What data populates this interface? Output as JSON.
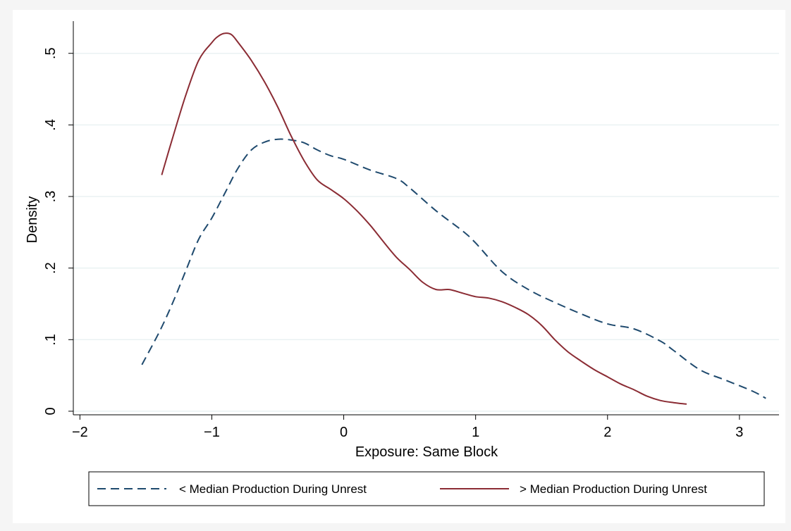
{
  "chart_data": {
    "type": "line",
    "title": "",
    "xlabel": "Exposure: Same Block",
    "ylabel": "Density",
    "xlim": [
      -2.05,
      3.3
    ],
    "ylim": [
      -0.005,
      0.545
    ],
    "x_ticks": [
      -2,
      -1,
      0,
      1,
      2,
      3
    ],
    "x_tick_labels": [
      "−2",
      "−1",
      "0",
      "1",
      "2",
      "3"
    ],
    "y_ticks": [
      0,
      0.1,
      0.2,
      0.3,
      0.4,
      0.5
    ],
    "y_tick_labels": [
      "0",
      ".1",
      ".2",
      ".3",
      ".4",
      ".5"
    ],
    "grid": "horizontal",
    "legend_position": "bottom",
    "series": [
      {
        "name": "< Median Production During Unrest",
        "color": "#1f4a6e",
        "style": "dashed",
        "x": [
          -1.53,
          -1.4,
          -1.3,
          -1.2,
          -1.1,
          -1.0,
          -0.9,
          -0.8,
          -0.7,
          -0.6,
          -0.5,
          -0.4,
          -0.3,
          -0.2,
          -0.1,
          0.0,
          0.2,
          0.4,
          0.5,
          0.7,
          0.9,
          1.0,
          1.2,
          1.4,
          1.6,
          1.8,
          2.0,
          2.2,
          2.4,
          2.5,
          2.7,
          2.9,
          3.1,
          3.2
        ],
        "y": [
          0.065,
          0.11,
          0.15,
          0.195,
          0.24,
          0.27,
          0.305,
          0.34,
          0.365,
          0.376,
          0.38,
          0.379,
          0.375,
          0.365,
          0.357,
          0.352,
          0.337,
          0.325,
          0.312,
          0.28,
          0.252,
          0.235,
          0.195,
          0.17,
          0.152,
          0.136,
          0.122,
          0.115,
          0.098,
          0.085,
          0.058,
          0.043,
          0.028,
          0.018
        ]
      },
      {
        "name": "> Median Production During Unrest",
        "color": "#8b2c34",
        "style": "solid",
        "x": [
          -1.38,
          -1.3,
          -1.2,
          -1.1,
          -1.0,
          -0.95,
          -0.9,
          -0.85,
          -0.8,
          -0.7,
          -0.6,
          -0.5,
          -0.4,
          -0.3,
          -0.2,
          -0.1,
          0.0,
          0.1,
          0.2,
          0.3,
          0.4,
          0.5,
          0.6,
          0.7,
          0.8,
          0.9,
          1.0,
          1.1,
          1.2,
          1.3,
          1.4,
          1.5,
          1.6,
          1.7,
          1.8,
          1.9,
          2.0,
          2.1,
          2.2,
          2.3,
          2.4,
          2.5,
          2.6
        ],
        "y": [
          0.33,
          0.38,
          0.44,
          0.49,
          0.515,
          0.524,
          0.528,
          0.526,
          0.515,
          0.49,
          0.46,
          0.425,
          0.385,
          0.35,
          0.323,
          0.31,
          0.297,
          0.28,
          0.26,
          0.237,
          0.215,
          0.198,
          0.18,
          0.17,
          0.17,
          0.165,
          0.16,
          0.158,
          0.153,
          0.145,
          0.135,
          0.12,
          0.1,
          0.083,
          0.07,
          0.058,
          0.048,
          0.038,
          0.03,
          0.021,
          0.015,
          0.012,
          0.01
        ]
      }
    ]
  }
}
